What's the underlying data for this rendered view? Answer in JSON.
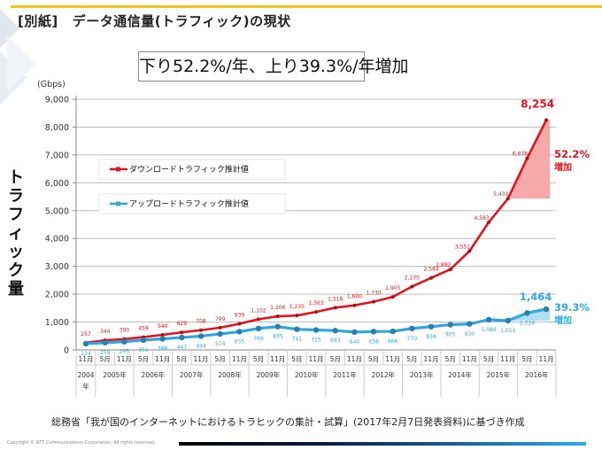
{
  "header": {
    "bracket_label": "[別紙]",
    "title": "データ通信量(トラフィック)の現状"
  },
  "headline": "下り52.2%/年、上り39.3%/年増加",
  "y_axis_vertical_label": [
    "ト",
    "ラ",
    "フ",
    "ィ",
    "ッ",
    "ク",
    "量"
  ],
  "source_note": "総務省「我が国のインターネットにおけるトラヒックの集計・試算」(2017年2月7日発表資料)に基づき作成",
  "copyright": "Copyright © NTT Communications Corporation. All rights reserved.",
  "colors": {
    "download": "#e0141e",
    "upload": "#2ea8dc",
    "download_fill": "#f5a0a0",
    "upload_fill": "#a8dcf2",
    "accent_yellow": "#f2c618"
  },
  "chart_data": {
    "type": "line",
    "title": "",
    "ylabel": "(Gbps)",
    "xlabel": "",
    "ylim": [
      0,
      9000
    ],
    "yticks": [
      0,
      1000,
      2000,
      3000,
      4000,
      5000,
      6000,
      7000,
      8000,
      9000
    ],
    "ytick_labels": [
      "0",
      "1,000",
      "2,000",
      "3,000",
      "4,000",
      "5,000",
      "6,000",
      "7,000",
      "8,000",
      "9,000"
    ],
    "grid": true,
    "legend_position": "top-left",
    "categories": [
      "2004/11",
      "2005/5",
      "2005/11",
      "2006/5",
      "2006/11",
      "2007/5",
      "2007/11",
      "2008/5",
      "2008/11",
      "2009/5",
      "2009/11",
      "2010/5",
      "2010/11",
      "2011/5",
      "2011/11",
      "2012/5",
      "2012/11",
      "2013/5",
      "2013/11",
      "2014/5",
      "2014/11",
      "2015/5",
      "2015/11",
      "2016/5",
      "2016/11"
    ],
    "month_labels": [
      "11月",
      "5月",
      "11月",
      "5月",
      "11月",
      "5月",
      "11月",
      "5月",
      "11月",
      "5月",
      "11月",
      "5月",
      "11月",
      "5月",
      "11月",
      "5月",
      "11月",
      "5月",
      "11月",
      "5月",
      "11月",
      "5月",
      "11月",
      "5月",
      "11月"
    ],
    "year_groups": [
      {
        "label": "2004年",
        "span": 1
      },
      {
        "label": "2005年",
        "span": 2
      },
      {
        "label": "2006年",
        "span": 2
      },
      {
        "label": "2007年",
        "span": 2
      },
      {
        "label": "2008年",
        "span": 2
      },
      {
        "label": "2009年",
        "span": 2
      },
      {
        "label": "2010年",
        "span": 2
      },
      {
        "label": "2011年",
        "span": 2
      },
      {
        "label": "2012年",
        "span": 2
      },
      {
        "label": "2013年",
        "span": 2
      },
      {
        "label": "2014年",
        "span": 2
      },
      {
        "label": "2015年",
        "span": 2
      },
      {
        "label": "2016年",
        "span": 2
      }
    ],
    "series": [
      {
        "name": "ダウンロードトラフィック推計値",
        "color": "#e0141e",
        "values": [
          257,
          344,
          390,
          459,
          540,
          629,
          708,
          799,
          939,
          1102,
          1206,
          1235,
          1363,
          1516,
          1600,
          1730,
          1905,
          2275,
          2584,
          2892,
          3551,
          4583,
          5431,
          6878,
          8254
        ],
        "labels": [
          "257",
          "344",
          "390",
          "459",
          "540",
          "629",
          "708",
          "799",
          "939",
          "1,102",
          "1,206",
          "1,235",
          "1,363",
          "1,516",
          "1,600",
          "1,730",
          "1,905",
          "2,275",
          "2,584",
          "2,892",
          "3,551",
          "4,583",
          "5,431",
          "6,878",
          "8,254"
        ]
      },
      {
        "name": "アップロードトラフィック推計値",
        "color": "#2ea8dc",
        "values": [
          224,
          259,
          295,
          351,
          398,
          447,
          494,
          574,
          655,
          769,
          835,
          741,
          715,
          693,
          640,
          658,
          666,
          770,
          834,
          905,
          930,
          1086,
          1051,
          1324,
          1464
        ],
        "labels": [
          "224",
          "259",
          "295",
          "351",
          "398",
          "447",
          "494",
          "574",
          "655",
          "769",
          "835",
          "741",
          "715",
          "693",
          "640",
          "658",
          "666",
          "770",
          "834",
          "905",
          "930",
          "1,086",
          "1,051",
          "1,324",
          "1,464"
        ]
      }
    ],
    "annotations": [
      {
        "series": 0,
        "text_value": "8,254",
        "growth": "52.2%",
        "growth_label": "増加",
        "from": 5431,
        "to": 8254
      },
      {
        "series": 1,
        "text_value": "1,464",
        "growth": "39.3%",
        "growth_label": "増加",
        "from": 1051,
        "to": 1464
      }
    ]
  }
}
